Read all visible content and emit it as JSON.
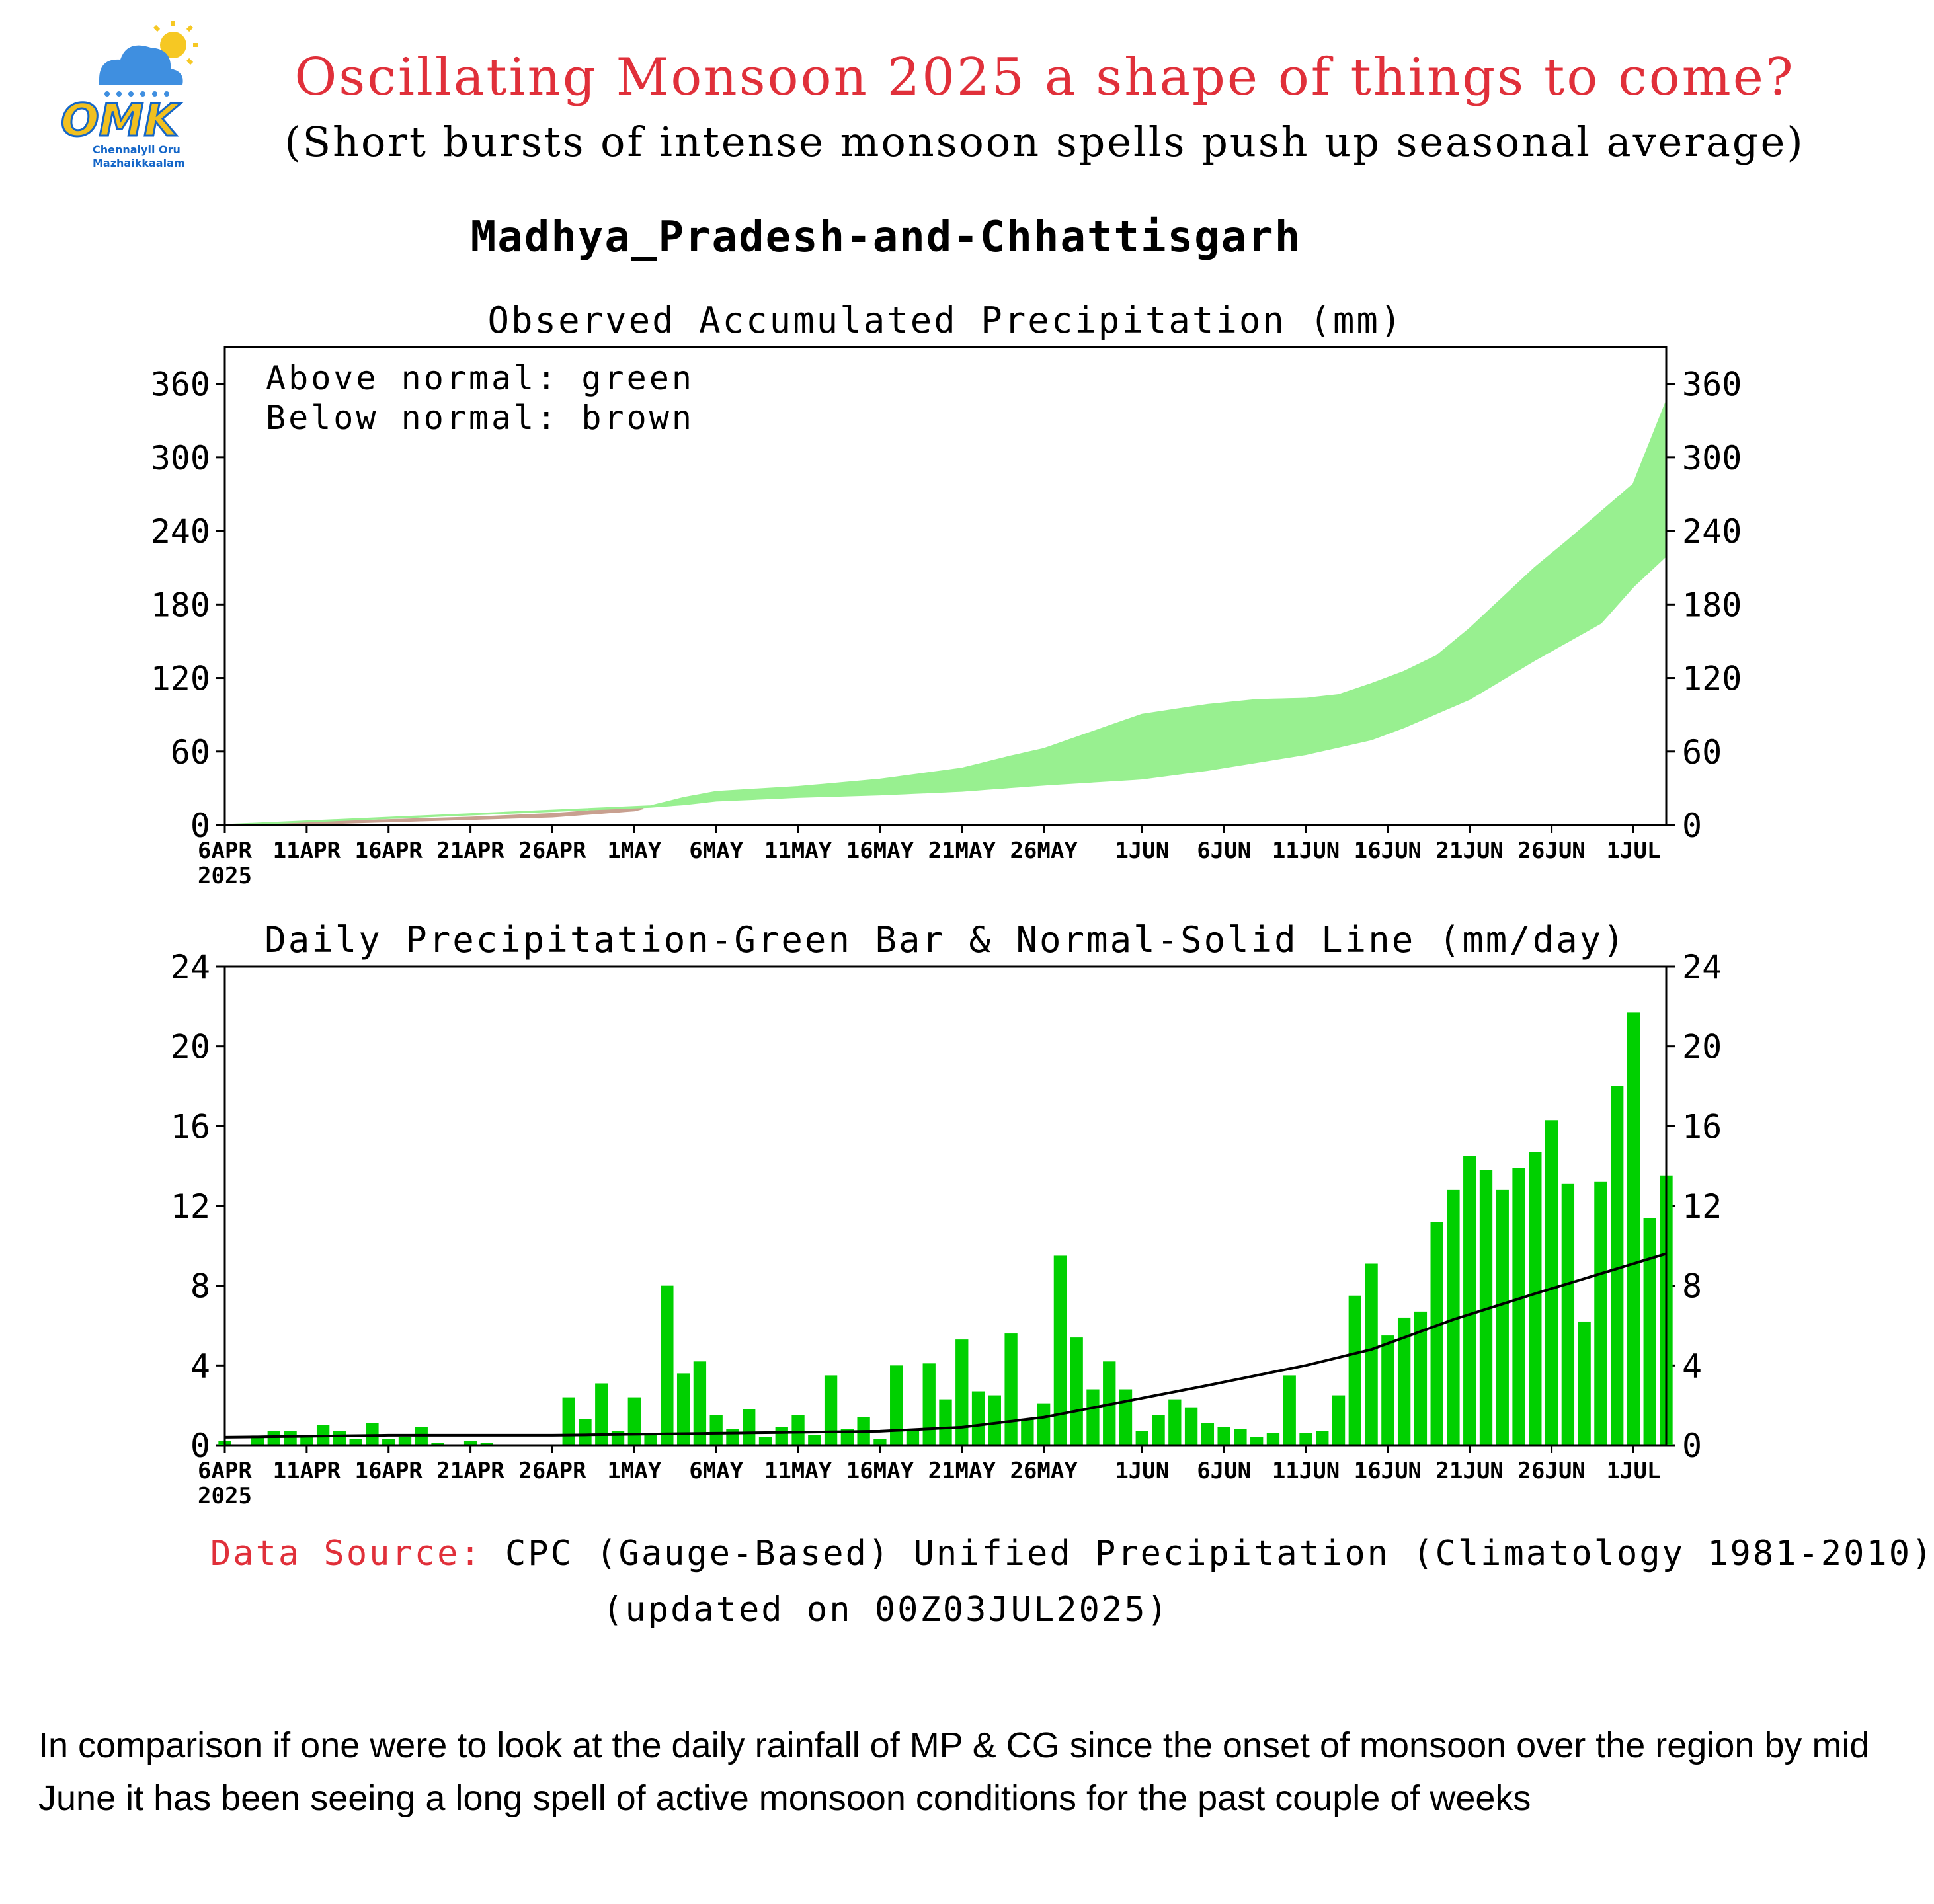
{
  "header": {
    "title": "Oscillating Monsoon 2025 a shape of things to come?",
    "subtitle": "(Short bursts of intense monsoon spells push up seasonal average)",
    "title_color": "#e0303a"
  },
  "logo": {
    "text": "OMK",
    "tagline_line1": "Chennaiyil Oru",
    "tagline_line2": "Mazhaikkaalam"
  },
  "colors": {
    "above_normal": "#98f090",
    "below_normal": "#c8a090",
    "daily_bar": "#00d000",
    "normal_line": "#000000",
    "source_label": "#e0303a"
  },
  "chart_heading": "Madhya_Pradesh-and-Chhattisgarh",
  "chart_data": [
    {
      "type": "area",
      "title": "Observed Accumulated Precipitation (mm)",
      "legend_lines": [
        "Above normal: green",
        "Below normal: brown"
      ],
      "legend_placement": "top-left",
      "ylim": [
        0,
        390
      ],
      "yticks": [
        0,
        60,
        120,
        180,
        240,
        300,
        360
      ],
      "x_tick_labels": [
        "6APR",
        "11APR",
        "16APR",
        "21APR",
        "26APR",
        "1MAY",
        "6MAY",
        "11MAY",
        "16MAY",
        "21MAY",
        "26MAY",
        "1JUN",
        "6JUN",
        "11JUN",
        "16JUN",
        "21JUN",
        "26JUN",
        "1JUL"
      ],
      "x_tick_days": [
        0,
        5,
        10,
        15,
        20,
        25,
        30,
        35,
        40,
        45,
        50,
        56,
        61,
        66,
        71,
        76,
        81,
        86
      ],
      "x_year_label": "2025",
      "xlim_days": [
        0,
        88
      ],
      "observed_points": [
        [
          0,
          0
        ],
        [
          5,
          1
        ],
        [
          10,
          3
        ],
        [
          15,
          5
        ],
        [
          20,
          7
        ],
        [
          25,
          12
        ],
        [
          28,
          22
        ],
        [
          30,
          27
        ],
        [
          35,
          31
        ],
        [
          40,
          37
        ],
        [
          45,
          46
        ],
        [
          48,
          56
        ],
        [
          50,
          62
        ],
        [
          53,
          76
        ],
        [
          56,
          90
        ],
        [
          58,
          94
        ],
        [
          60,
          98
        ],
        [
          63,
          102
        ],
        [
          66,
          103
        ],
        [
          68,
          106
        ],
        [
          70,
          115
        ],
        [
          72,
          125
        ],
        [
          74,
          138
        ],
        [
          76,
          160
        ],
        [
          78,
          185
        ],
        [
          80,
          210
        ],
        [
          82,
          232
        ],
        [
          84,
          255
        ],
        [
          86,
          278
        ],
        [
          88,
          345
        ]
      ],
      "normal_points": [
        [
          0,
          0
        ],
        [
          5,
          2
        ],
        [
          10,
          4
        ],
        [
          15,
          6
        ],
        [
          20,
          9
        ],
        [
          25,
          14
        ],
        [
          28,
          17
        ],
        [
          30,
          20
        ],
        [
          35,
          23
        ],
        [
          40,
          25
        ],
        [
          45,
          28
        ],
        [
          50,
          33
        ],
        [
          56,
          38
        ],
        [
          60,
          45
        ],
        [
          66,
          58
        ],
        [
          70,
          70
        ],
        [
          72,
          80
        ],
        [
          76,
          103
        ],
        [
          80,
          135
        ],
        [
          84,
          165
        ],
        [
          86,
          195
        ],
        [
          88,
          220
        ]
      ]
    },
    {
      "type": "bar",
      "title": "Daily Precipitation-Green Bar & Normal-Solid Line (mm/day)",
      "ylim": [
        0,
        24
      ],
      "yticks": [
        0,
        4,
        8,
        12,
        16,
        20,
        24
      ],
      "x_tick_labels": [
        "6APR",
        "11APR",
        "16APR",
        "21APR",
        "26APR",
        "1MAY",
        "6MAY",
        "11MAY",
        "16MAY",
        "21MAY",
        "26MAY",
        "1JUN",
        "6JUN",
        "11JUN",
        "16JUN",
        "21JUN",
        "26JUN",
        "1JUL"
      ],
      "x_tick_days": [
        0,
        5,
        10,
        15,
        20,
        25,
        30,
        35,
        40,
        45,
        50,
        56,
        61,
        66,
        71,
        76,
        81,
        86
      ],
      "x_year_label": "2025",
      "xlim_days": [
        0,
        88
      ],
      "daily_values": [
        0.2,
        0.0,
        0.4,
        0.7,
        0.7,
        0.4,
        1.0,
        0.7,
        0.3,
        1.1,
        0.3,
        0.4,
        0.9,
        0.1,
        0.0,
        0.2,
        0.1,
        0.0,
        0.0,
        0.0,
        0.0,
        2.4,
        1.3,
        3.1,
        0.7,
        2.4,
        0.6,
        8.0,
        3.6,
        4.2,
        1.5,
        0.8,
        1.8,
        0.4,
        0.9,
        1.5,
        0.5,
        3.5,
        0.8,
        1.4,
        0.3,
        4.0,
        0.7,
        4.1,
        2.3,
        5.3,
        2.7,
        2.5,
        5.6,
        1.3,
        2.1,
        9.5,
        5.4,
        2.8,
        4.2,
        2.8,
        0.7,
        1.5,
        2.3,
        1.9,
        1.1,
        0.9,
        0.8,
        0.4,
        0.6,
        3.5,
        0.6,
        0.7,
        2.5,
        7.5,
        9.1,
        5.5,
        6.4,
        6.7,
        11.2,
        12.8,
        14.5,
        13.8,
        12.8,
        13.9,
        14.7,
        16.3,
        13.1,
        6.2,
        13.2,
        18.0,
        21.7,
        11.4,
        13.5
      ],
      "normal_line": [
        [
          0,
          0.4
        ],
        [
          10,
          0.5
        ],
        [
          20,
          0.5
        ],
        [
          30,
          0.6
        ],
        [
          40,
          0.7
        ],
        [
          45,
          0.9
        ],
        [
          50,
          1.4
        ],
        [
          55,
          2.2
        ],
        [
          60,
          3.0
        ],
        [
          66,
          4.0
        ],
        [
          70,
          4.8
        ],
        [
          75,
          6.3
        ],
        [
          80,
          7.6
        ],
        [
          84,
          8.6
        ],
        [
          88,
          9.6
        ]
      ]
    }
  ],
  "footer": {
    "source_label": "Data Source:",
    "source_text": "CPC (Gauge-Based) Unified Precipitation (Climatology 1981-2010)",
    "updated": "(updated on 00Z03JUL2025)"
  },
  "caption": "In comparison if one were to look at the daily rainfall of MP & CG since the onset of monsoon over the region by mid June it has been seeing a long spell of active monsoon conditions  for the past couple of weeks"
}
